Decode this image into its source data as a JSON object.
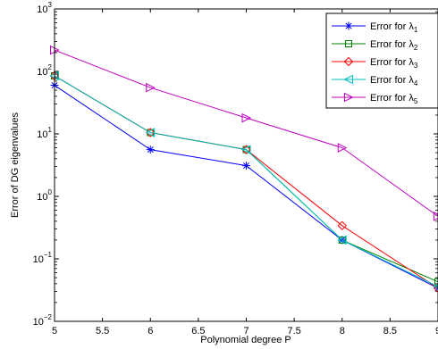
{
  "chart_data": {
    "type": "line",
    "xlabel": "Polynomial degree P",
    "ylabel": "Error of DG eigenvalues",
    "xlim": [
      5,
      9
    ],
    "ylim": [
      0.01,
      1000
    ],
    "y_scale": "log",
    "grid": false,
    "legend_position": "top-right",
    "x_ticks": [
      "5",
      "5.5",
      "6",
      "6.5",
      "7",
      "7.5",
      "8",
      "8.5",
      "9"
    ],
    "y_ticks": [
      {
        "base": "10",
        "exp": "−2"
      },
      {
        "base": "10",
        "exp": "−1"
      },
      {
        "base": "10",
        "exp": "0"
      },
      {
        "base": "10",
        "exp": "1"
      },
      {
        "base": "10",
        "exp": "2"
      },
      {
        "base": "10",
        "exp": "3"
      }
    ],
    "x": [
      5,
      6,
      7,
      8,
      9
    ],
    "series": [
      {
        "name": "Error for λ",
        "sub": "1",
        "color": "#0000ff",
        "marker": "star",
        "values": [
          60,
          5.6,
          3.1,
          0.2,
          0.034
        ]
      },
      {
        "name": "Error for λ",
        "sub": "2",
        "color": "#008000",
        "marker": "square",
        "values": [
          85,
          10.5,
          5.6,
          0.2,
          0.043
        ]
      },
      {
        "name": "Error for λ",
        "sub": "3",
        "color": "#ff0000",
        "marker": "diamond",
        "values": [
          85,
          10.5,
          5.6,
          0.34,
          0.034
        ]
      },
      {
        "name": "Error for λ",
        "sub": "4",
        "color": "#00bfbf",
        "marker": "triangle-left",
        "values": [
          85,
          10.5,
          5.6,
          0.2,
          0.036
        ]
      },
      {
        "name": "Error for λ",
        "sub": "5",
        "color": "#bf00bf",
        "marker": "triangle-right",
        "values": [
          220,
          55,
          18,
          6.0,
          0.48
        ]
      }
    ]
  }
}
